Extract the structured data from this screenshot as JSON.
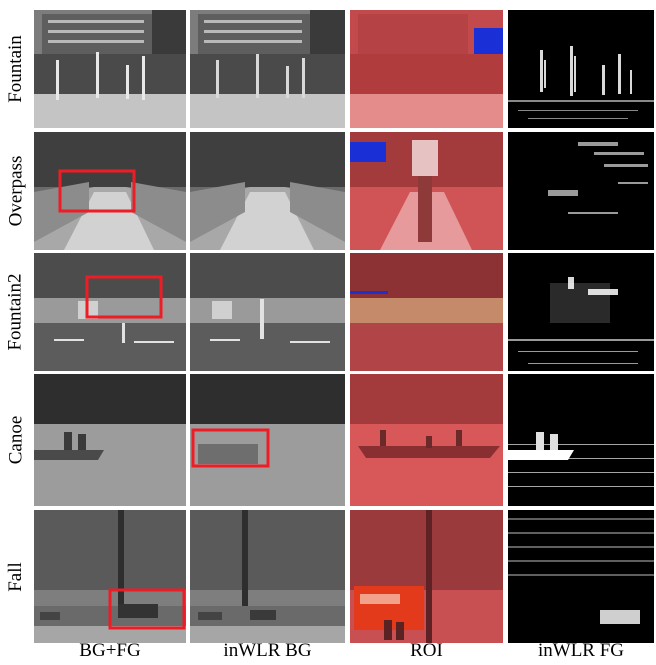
{
  "rows": [
    {
      "label": "Fountain"
    },
    {
      "label": "Overpass"
    },
    {
      "label": "Fountain2"
    },
    {
      "label": "Canoe"
    },
    {
      "label": "Fall"
    }
  ],
  "columns": [
    {
      "label": "BG+FG"
    },
    {
      "label": "inWLR BG"
    },
    {
      "label": "ROI"
    },
    {
      "label": "inWLR FG"
    }
  ],
  "colors": {
    "highlight_box": "#ee1c24",
    "roi_red": "#e8383a",
    "roi_blue": "#1a2fd6",
    "foreground_white": "#ffffff",
    "foreground_bg": "#000000"
  }
}
